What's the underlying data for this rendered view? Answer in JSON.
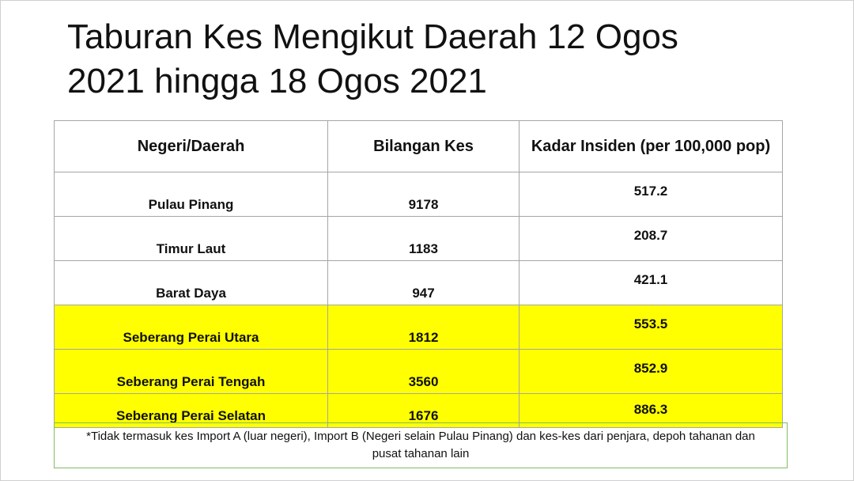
{
  "header": {
    "title_lines": [
      "Taburan Kes Mengikut Daerah  12 Ogos",
      "2021 hingga 18 Ogos 2021"
    ]
  },
  "table": {
    "columns": [
      "Negeri/Daerah",
      "Bilangan Kes",
      "Kadar Insiden (per 100,000 pop)"
    ],
    "rows": [
      [
        "Pulau Pinang",
        "9178",
        "517.2"
      ],
      [
        "Timur Laut",
        "1183",
        "208.7"
      ],
      [
        "Barat Daya",
        "947",
        "421.1"
      ],
      [
        "Seberang Perai Utara",
        "1812",
        "553.5"
      ],
      [
        "Seberang Perai Tengah",
        "3560",
        "852.9"
      ],
      [
        "Seberang Perai Selatan",
        "1676",
        "886.3"
      ]
    ]
  },
  "footnote": "*Tidak termasuk kes Import A (luar negeri), Import B (Negeri selain Pulau Pinang) dan kes-kes dari penjara, depoh tahanan dan pusat tahanan lain"
}
